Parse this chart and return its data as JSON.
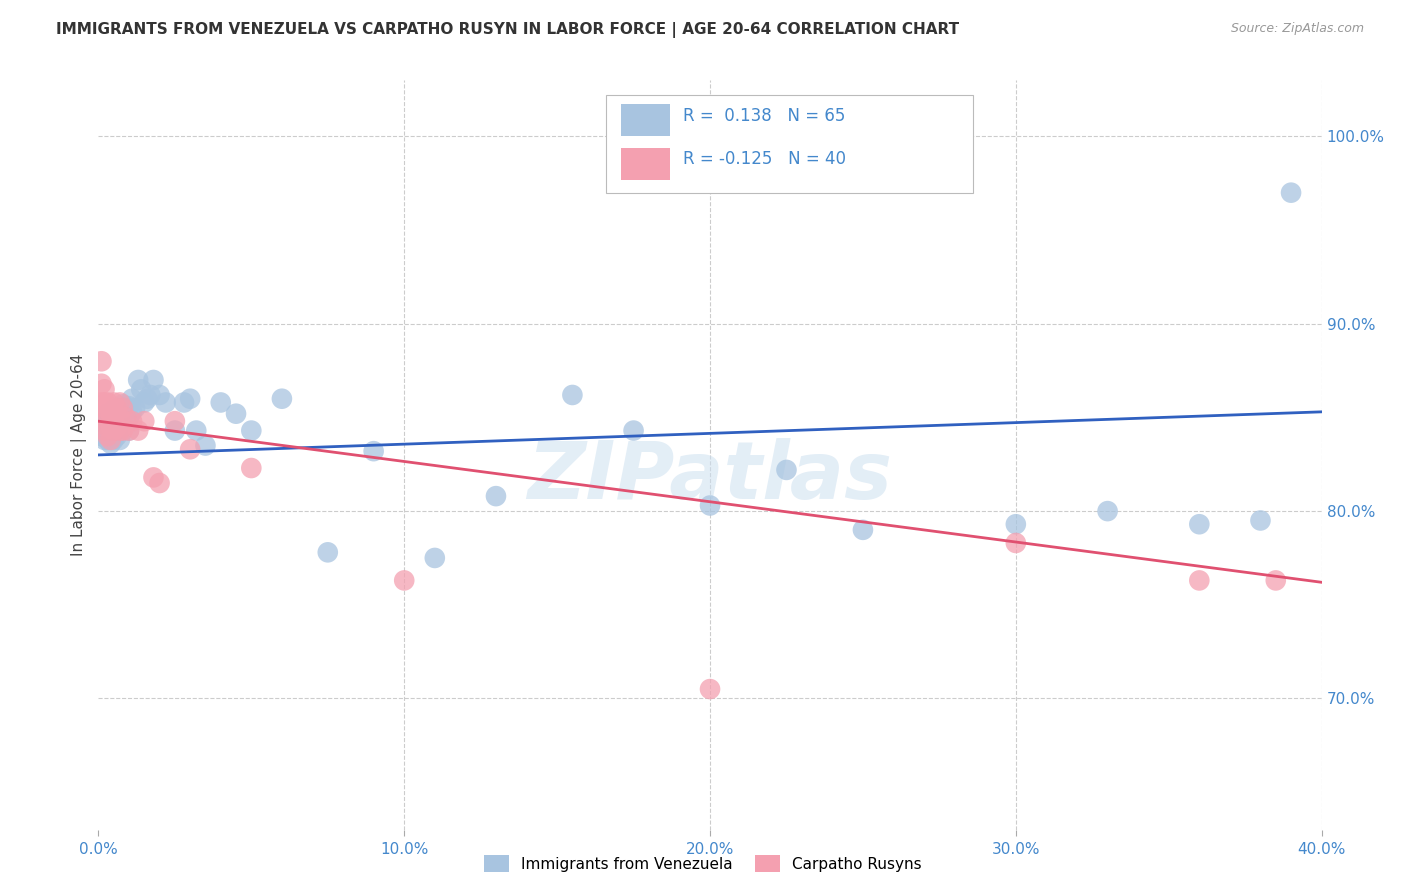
{
  "title": "IMMIGRANTS FROM VENEZUELA VS CARPATHO RUSYN IN LABOR FORCE | AGE 20-64 CORRELATION CHART",
  "source": "Source: ZipAtlas.com",
  "ylabel": "In Labor Force | Age 20-64",
  "xlim": [
    0.0,
    0.4
  ],
  "ylim": [
    0.63,
    1.03
  ],
  "xticks": [
    0.0,
    0.1,
    0.2,
    0.3,
    0.4
  ],
  "yticks_right": [
    0.7,
    0.8,
    0.9,
    1.0
  ],
  "venezuela_R": 0.138,
  "venezuela_N": 65,
  "carpatho_R": -0.125,
  "carpatho_N": 40,
  "venezuela_color": "#a8c4e0",
  "carpatho_color": "#f4a0b0",
  "venezuela_line_color": "#3060c0",
  "carpatho_line_color": "#e05070",
  "legend_label_venezuela": "Immigrants from Venezuela",
  "legend_label_carpatho": "Carpatho Rusyns",
  "background_color": "#ffffff",
  "grid_color": "#cccccc",
  "watermark": "ZIPatlas",
  "venezuela_x": [
    0.001,
    0.001,
    0.002,
    0.002,
    0.002,
    0.003,
    0.003,
    0.003,
    0.003,
    0.004,
    0.004,
    0.004,
    0.005,
    0.005,
    0.005,
    0.005,
    0.006,
    0.006,
    0.006,
    0.007,
    0.007,
    0.007,
    0.007,
    0.008,
    0.008,
    0.008,
    0.009,
    0.009,
    0.01,
    0.01,
    0.01,
    0.011,
    0.011,
    0.012,
    0.013,
    0.014,
    0.015,
    0.016,
    0.017,
    0.018,
    0.02,
    0.022,
    0.025,
    0.028,
    0.03,
    0.032,
    0.035,
    0.04,
    0.045,
    0.05,
    0.06,
    0.075,
    0.09,
    0.11,
    0.13,
    0.155,
    0.175,
    0.2,
    0.225,
    0.25,
    0.3,
    0.33,
    0.36,
    0.38,
    0.39
  ],
  "venezuela_y": [
    0.84,
    0.845,
    0.85,
    0.843,
    0.838,
    0.852,
    0.848,
    0.843,
    0.838,
    0.849,
    0.842,
    0.836,
    0.854,
    0.849,
    0.845,
    0.838,
    0.851,
    0.845,
    0.84,
    0.855,
    0.85,
    0.845,
    0.838,
    0.857,
    0.852,
    0.845,
    0.855,
    0.849,
    0.856,
    0.85,
    0.843,
    0.86,
    0.853,
    0.855,
    0.87,
    0.865,
    0.858,
    0.86,
    0.862,
    0.87,
    0.862,
    0.858,
    0.843,
    0.858,
    0.86,
    0.843,
    0.835,
    0.858,
    0.852,
    0.843,
    0.86,
    0.778,
    0.832,
    0.775,
    0.808,
    0.862,
    0.843,
    0.803,
    0.822,
    0.79,
    0.793,
    0.8,
    0.793,
    0.795,
    0.97
  ],
  "carpatho_x": [
    0.001,
    0.001,
    0.001,
    0.001,
    0.002,
    0.002,
    0.002,
    0.002,
    0.003,
    0.003,
    0.003,
    0.003,
    0.004,
    0.004,
    0.004,
    0.005,
    0.005,
    0.005,
    0.006,
    0.006,
    0.007,
    0.007,
    0.007,
    0.008,
    0.008,
    0.009,
    0.01,
    0.011,
    0.013,
    0.015,
    0.018,
    0.02,
    0.025,
    0.03,
    0.05,
    0.1,
    0.2,
    0.3,
    0.36,
    0.385
  ],
  "carpatho_y": [
    0.88,
    0.868,
    0.858,
    0.85,
    0.858,
    0.865,
    0.855,
    0.843,
    0.858,
    0.852,
    0.845,
    0.84,
    0.852,
    0.845,
    0.838,
    0.858,
    0.85,
    0.843,
    0.855,
    0.845,
    0.858,
    0.85,
    0.843,
    0.855,
    0.843,
    0.85,
    0.843,
    0.848,
    0.843,
    0.848,
    0.818,
    0.815,
    0.848,
    0.833,
    0.823,
    0.763,
    0.705,
    0.783,
    0.763,
    0.763
  ],
  "ven_trend_x0": 0.0,
  "ven_trend_y0": 0.83,
  "ven_trend_x1": 0.4,
  "ven_trend_y1": 0.853,
  "car_trend_x0": 0.0,
  "car_trend_y0": 0.848,
  "car_trend_x1": 0.4,
  "car_trend_y1": 0.762
}
